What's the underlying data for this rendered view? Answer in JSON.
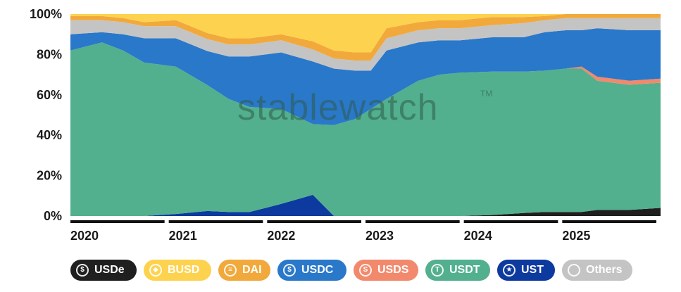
{
  "chart_data": {
    "type": "area",
    "stacked": true,
    "normalized": true,
    "watermark": "stablewatch",
    "watermark_mark": "TM",
    "yticks": [
      "0%",
      "20%",
      "40%",
      "60%",
      "80%",
      "100%"
    ],
    "ylim": [
      0,
      100
    ],
    "x_years": [
      "2020",
      "2021",
      "2022",
      "2023",
      "2024",
      "2025"
    ],
    "x": [
      2020.0,
      2020.3,
      2020.5,
      2020.7,
      2021.0,
      2021.3,
      2021.5,
      2021.7,
      2022.0,
      2022.3,
      2022.5,
      2022.7,
      2022.85,
      2023.0,
      2023.3,
      2023.5,
      2023.7,
      2024.0,
      2024.3,
      2024.5,
      2024.7,
      2024.85,
      2025.0,
      2025.3,
      2025.6
    ],
    "series": [
      {
        "name": "USDe",
        "color": "#1f1f1f",
        "values": [
          0,
          0,
          0,
          0,
          0,
          0,
          0,
          0,
          0,
          0,
          0,
          0,
          0,
          0,
          0,
          0,
          0,
          0.5,
          1.5,
          2,
          2,
          2,
          3,
          3,
          4
        ]
      },
      {
        "name": "UST",
        "color": "#0d3a9e",
        "values": [
          0,
          0,
          0,
          0,
          1,
          2.5,
          2,
          2,
          6,
          10.5,
          0,
          0,
          0,
          0,
          0,
          0,
          0,
          0,
          0,
          0,
          0,
          0,
          0,
          0,
          0
        ]
      },
      {
        "name": "USDT",
        "color": "#52b08e",
        "values": [
          82,
          86,
          82,
          76,
          73,
          63,
          56,
          52,
          47,
          35,
          45,
          48,
          53,
          58,
          67,
          70,
          71,
          71,
          70,
          70,
          71,
          71,
          64,
          62,
          62
        ]
      },
      {
        "name": "USDS",
        "color": "#f2896c",
        "values": [
          0,
          0,
          0,
          0,
          0,
          0,
          0,
          0,
          0,
          0,
          0,
          0,
          0,
          0,
          0,
          0,
          0,
          0,
          0,
          0,
          0,
          1,
          2,
          2,
          2
        ]
      },
      {
        "name": "USDC",
        "color": "#2a78c9",
        "values": [
          8,
          5,
          8,
          12,
          14,
          17,
          21,
          25,
          28,
          31,
          28,
          24,
          19,
          24,
          19,
          17,
          16,
          17,
          17,
          19,
          19,
          18,
          24,
          25,
          24
        ]
      },
      {
        "name": "Others",
        "color": "#c4c4c4",
        "values": [
          7,
          6,
          6,
          6,
          6,
          6,
          6,
          6,
          6,
          6,
          5,
          5,
          5,
          6,
          6,
          6,
          6,
          6,
          7,
          6,
          6,
          6,
          5,
          6,
          6
        ]
      },
      {
        "name": "DAI",
        "color": "#f2a93b",
        "values": [
          2,
          2,
          2,
          2,
          3,
          3,
          3,
          3,
          3,
          4,
          4,
          4,
          4,
          5,
          4,
          4,
          4,
          4,
          3,
          2,
          2,
          2,
          2,
          2,
          2
        ]
      },
      {
        "name": "BUSD",
        "color": "#fdd24e",
        "values": [
          1,
          1,
          2,
          4,
          3,
          9.5,
          12,
          12,
          10,
          13.5,
          18,
          19,
          19,
          7,
          4,
          3,
          3,
          1.5,
          1.5,
          1,
          0,
          0,
          0,
          0,
          0
        ]
      }
    ],
    "legend": [
      {
        "label": "USDe",
        "color": "#1f1f1f",
        "icon": "dollar-coin-icon"
      },
      {
        "label": "BUSD",
        "color": "#fdd24e",
        "icon": "binance-icon"
      },
      {
        "label": "DAI",
        "color": "#f2a93b",
        "icon": "dai-icon"
      },
      {
        "label": "USDC",
        "color": "#2a78c9",
        "icon": "usdc-icon"
      },
      {
        "label": "USDS",
        "color": "#f2896c",
        "icon": "usds-icon"
      },
      {
        "label": "USDT",
        "color": "#52b08e",
        "icon": "tether-icon"
      },
      {
        "label": "UST",
        "color": "#0d3a9e",
        "icon": "ust-icon"
      },
      {
        "label": "Others",
        "color": "#c4c4c4",
        "icon": "circle-icon"
      }
    ],
    "legend_placement": "bottom",
    "grid": false
  }
}
